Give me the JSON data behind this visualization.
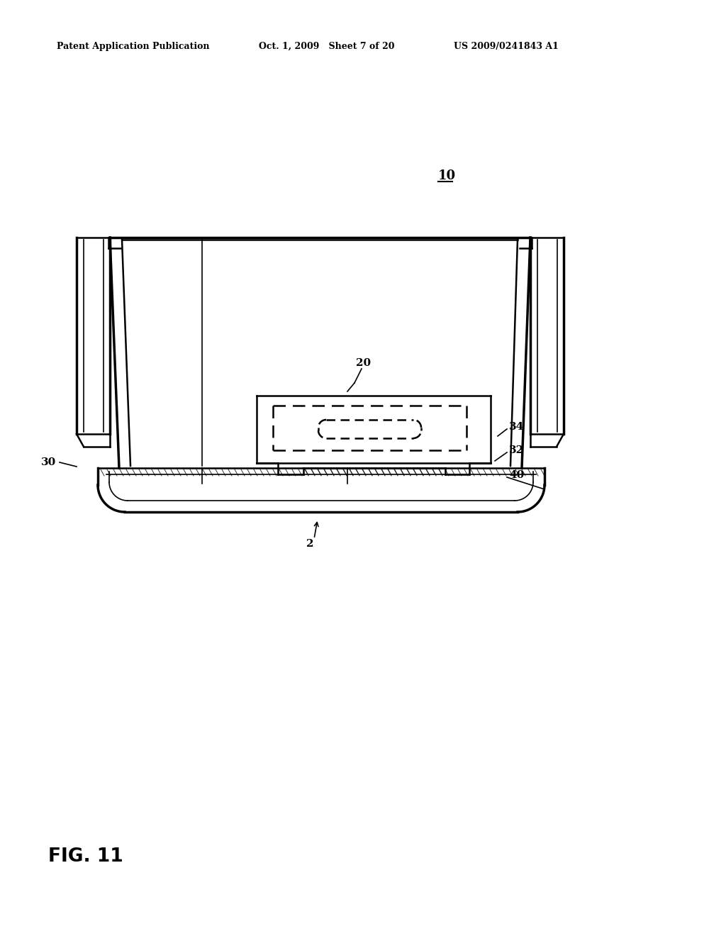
{
  "bg_color": "#ffffff",
  "line_color": "#000000",
  "header_left": "Patent Application Publication",
  "header_mid": "Oct. 1, 2009   Sheet 7 of 20",
  "header_right": "US 2009/0241843 A1",
  "fig_label": "FIG. 11",
  "ref_10": "10",
  "ref_20": "20",
  "ref_30": "30",
  "ref_32": "32",
  "ref_34": "34",
  "ref_40": "40",
  "ref_2": "2"
}
